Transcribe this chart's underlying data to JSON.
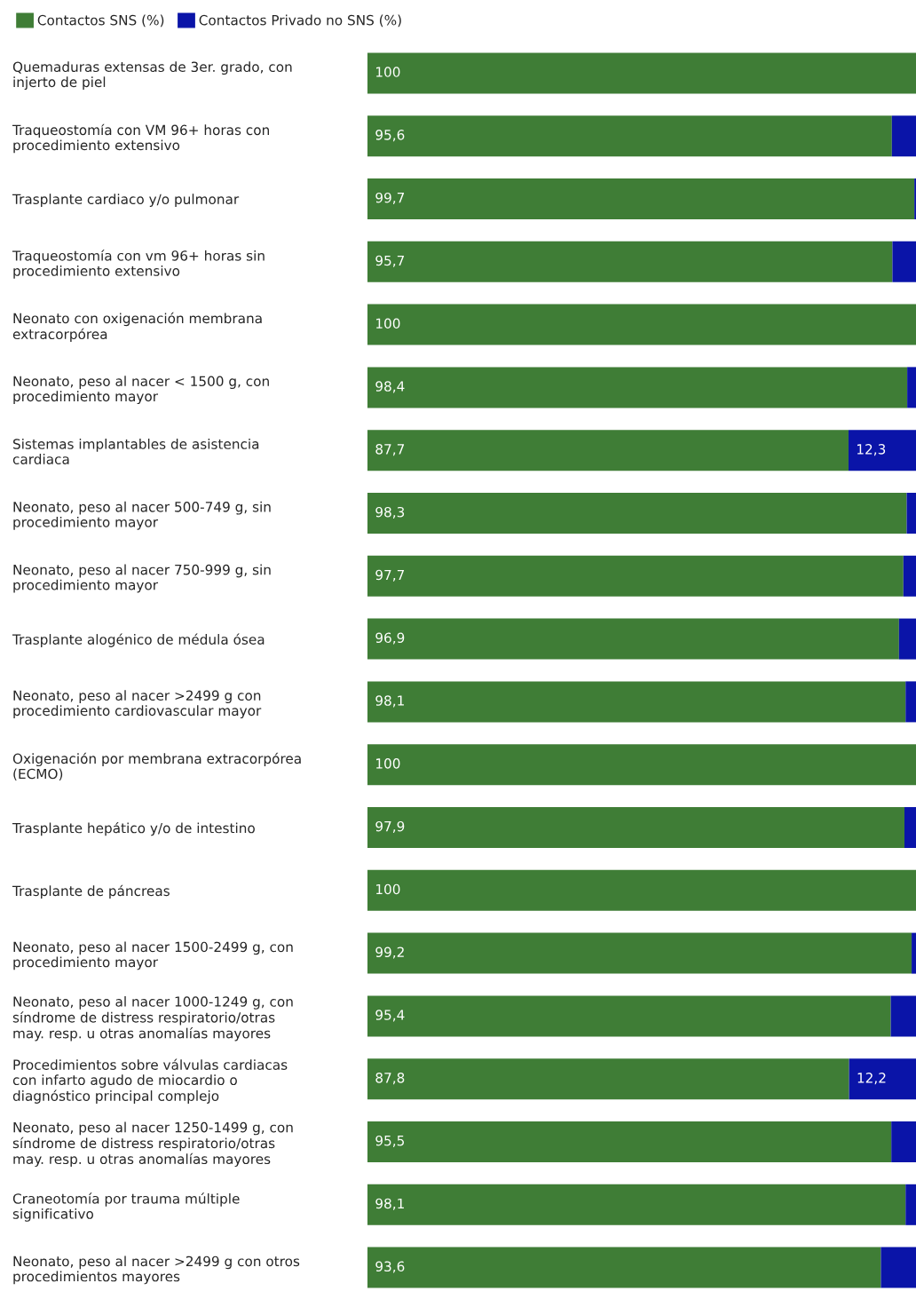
{
  "chart_data": {
    "type": "bar",
    "orientation": "horizontal",
    "stacked": true,
    "legend": "top left",
    "grid": false,
    "tick_labels": "y",
    "xlim": [
      0,
      100
    ],
    "categories": [
      "Quemaduras extensas de 3er. grado, con\ninjerto de piel",
      "Traqueostomía con VM 96+ horas con\nprocedimiento extensivo",
      "Trasplante cardiaco y/o pulmonar",
      "Traqueostomía con vm 96+ horas sin\nprocedimiento extensivo",
      "Neonato con oxigenación membrana\nextracorpórea",
      "Neonato, peso al nacer < 1500 g, con\nprocedimiento mayor",
      "Sistemas implantables de asistencia\ncardiaca",
      "Neonato, peso al nacer 500-749 g, sin\nprocedimiento mayor",
      "Neonato, peso al nacer 750-999 g, sin\nprocedimiento mayor",
      "Trasplante alogénico de médula ósea",
      "Neonato, peso al nacer >2499 g con\nprocedimiento cardiovascular mayor",
      "Oxigenación por membrana extracorpórea\n(ECMO)",
      "Trasplante hepático y/o de intestino",
      "Trasplante de páncreas",
      "Neonato, peso al nacer 1500-2499 g, con\nprocedimiento mayor",
      "Neonato, peso al nacer 1000-1249 g, con\nsíndrome de distress respiratorio/otras\nmay. resp. u otras anomalías mayores",
      "Procedimientos sobre válvulas cardiacas\ncon infarto agudo de miocardio o\ndiagnóstico principal complejo",
      "Neonato, peso al nacer 1250-1499 g, con\nsíndrome de distress respiratorio/otras\nmay. resp. u otras anomalías mayores",
      "Craneotomía por trauma múltiple\nsignificativo",
      "Neonato, peso al nacer >2499 g con otros\nprocedimientos mayores"
    ],
    "series": [
      {
        "name": "Contactos SNS (%)",
        "color": "#3f7d36",
        "values": [
          100,
          95.6,
          99.7,
          95.7,
          100,
          98.4,
          87.7,
          98.3,
          97.7,
          96.9,
          98.1,
          100,
          97.9,
          100,
          99.2,
          95.4,
          87.8,
          95.5,
          98.1,
          93.6
        ],
        "value_labels": [
          "100",
          "95,6",
          "99,7",
          "95,7",
          "100",
          "98,4",
          "87,7",
          "98,3",
          "97,7",
          "96,9",
          "98,1",
          "100",
          "97,9",
          "100",
          "99,2",
          "95,4",
          "87,8",
          "95,5",
          "98,1",
          "93,6"
        ]
      },
      {
        "name": "Contactos Privado no SNS (%)",
        "color": "#0a14a8",
        "values": [
          0,
          4.4,
          0.3,
          4.3,
          0,
          1.6,
          12.3,
          1.7,
          2.3,
          3.1,
          1.9,
          0,
          2.1,
          0,
          0.8,
          4.6,
          12.2,
          4.5,
          1.9,
          6.4
        ],
        "value_labels": [
          null,
          null,
          null,
          null,
          null,
          null,
          "12,3",
          null,
          null,
          null,
          null,
          null,
          null,
          null,
          null,
          null,
          "12,2",
          null,
          null,
          null
        ]
      }
    ]
  }
}
